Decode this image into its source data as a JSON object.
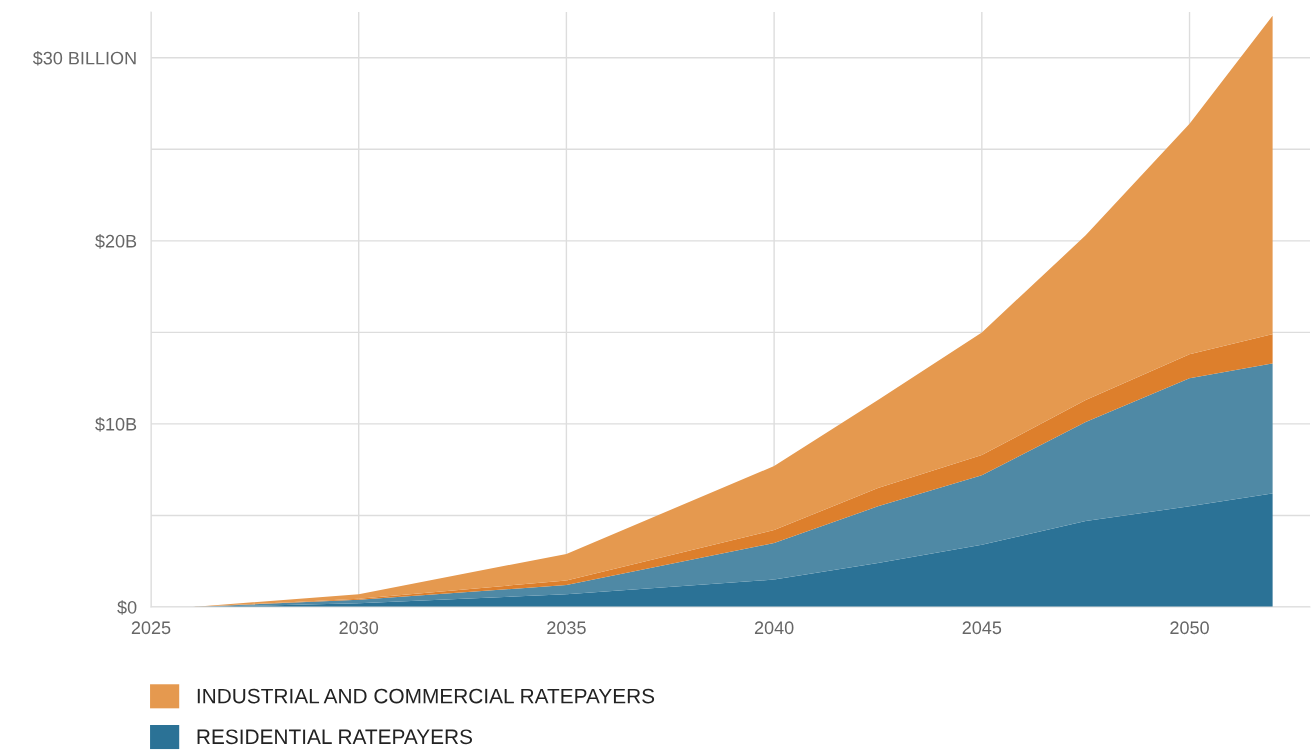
{
  "chart_data": {
    "type": "area",
    "stacked": true,
    "x": [
      2026,
      2030,
      2035,
      2040,
      2042.5,
      2045,
      2047.5,
      2050,
      2052
    ],
    "series": [
      {
        "name": "RESIDENTIAL RATEPAYERS",
        "color": "#2b7296",
        "values": [
          0,
          0.2,
          0.7,
          1.5,
          2.4,
          3.4,
          4.7,
          5.5,
          6.2
        ]
      },
      {
        "color": "#4f89a5",
        "values": [
          0,
          0.2,
          0.5,
          2.0,
          3.1,
          3.8,
          5.4,
          7.0,
          7.1
        ]
      },
      {
        "color": "#dd7f2c",
        "values": [
          0,
          0.05,
          0.25,
          0.7,
          1.0,
          1.1,
          1.2,
          1.3,
          1.6
        ]
      },
      {
        "name": "INDUSTRIAL AND COMMERCIAL RATEPAYERS",
        "color": "#e5994f",
        "values": [
          0,
          0.25,
          1.45,
          3.5,
          4.8,
          6.7,
          9.0,
          12.6,
          17.4
        ]
      }
    ],
    "xlim": [
      2025,
      2052.9
    ],
    "xticks": [
      2025,
      2030,
      2035,
      2040,
      2045,
      2050
    ],
    "ylim": [
      0,
      32.5
    ],
    "yticks": [
      {
        "value": 0,
        "label": "$0"
      },
      {
        "value": 5,
        "label": null
      },
      {
        "value": 10,
        "label": "$10B"
      },
      {
        "value": 15,
        "label": null
      },
      {
        "value": 20,
        "label": "$20B"
      },
      {
        "value": 25,
        "label": null
      },
      {
        "value": 30,
        "label": "$30 BILLION"
      }
    ],
    "grid": true,
    "legend": "bottom left"
  }
}
